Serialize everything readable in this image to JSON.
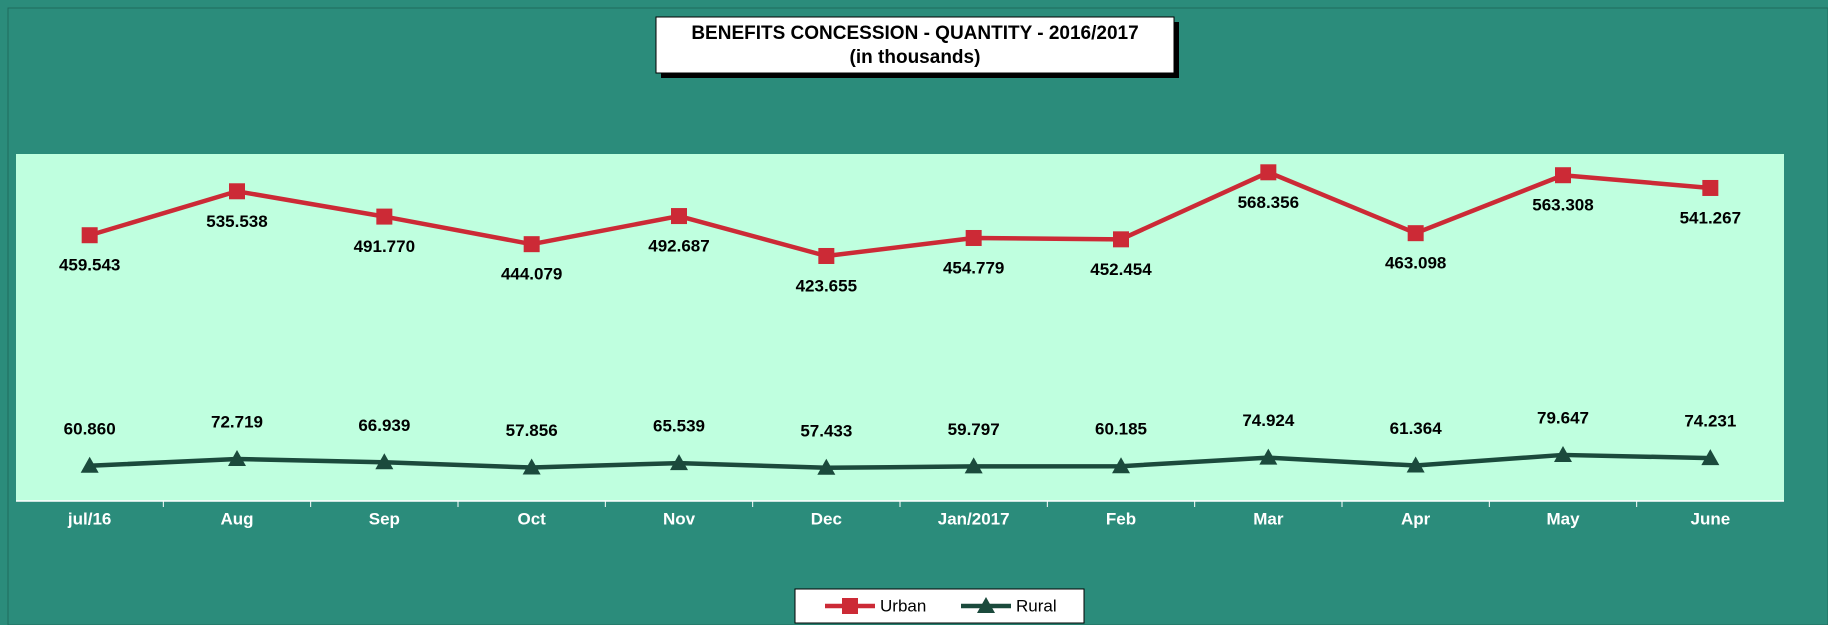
{
  "chart_data": {
    "type": "line",
    "title": "BENEFITS CONCESSION - QUANTITY -  2016/2017",
    "subtitle": "(in thousands)",
    "categories": [
      "jul/16",
      "Aug",
      "Sep",
      "Oct",
      "Nov",
      "Dec",
      "Jan/2017",
      "Feb",
      "Mar",
      "Apr",
      "May",
      "June"
    ],
    "series": [
      {
        "name": "Urban",
        "color": "#cc2a36",
        "marker": "square",
        "values": [
          459.543,
          535.538,
          491.77,
          444.079,
          492.687,
          423.655,
          454.779,
          452.454,
          568.356,
          463.098,
          563.308,
          541.267
        ],
        "value_labels": [
          "459.543",
          "535.538",
          "491.770",
          "444.079",
          "492.687",
          "423.655",
          "454.779",
          "452.454",
          "568.356",
          "463.098",
          "563.308",
          "541.267"
        ]
      },
      {
        "name": "Rural",
        "color": "#1b4a3c",
        "marker": "triangle",
        "values": [
          60.86,
          72.719,
          66.939,
          57.856,
          65.539,
          57.433,
          59.797,
          60.185,
          74.924,
          61.364,
          79.647,
          74.231
        ],
        "value_labels": [
          "60.860",
          "72.719",
          "66.939",
          "57.856",
          "65.539",
          "57.433",
          "59.797",
          "60.185",
          "74.924",
          "61.364",
          "79.647",
          "74.231"
        ]
      }
    ],
    "ylim": [
      0,
      600
    ],
    "legend": "bottom"
  }
}
